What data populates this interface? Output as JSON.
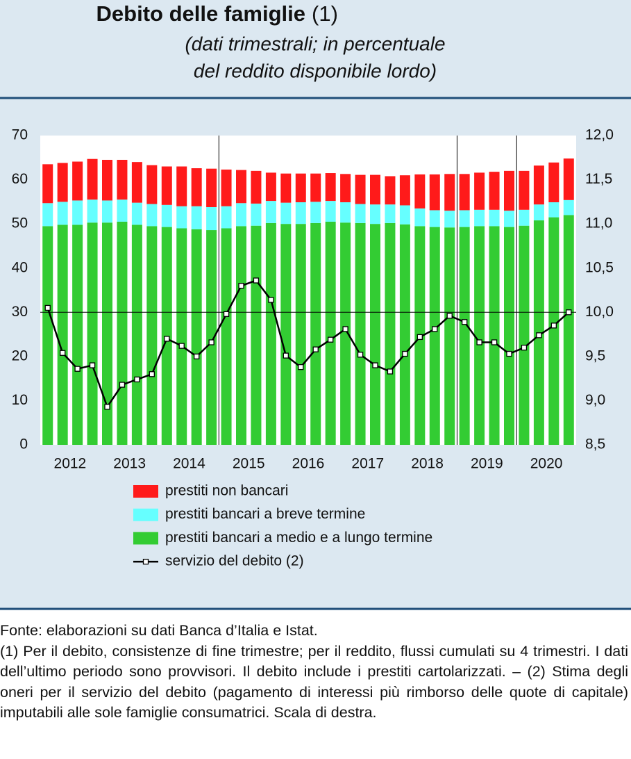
{
  "chart_data": {
    "type": "bar",
    "title": "Debito delle famiglie",
    "title_note": "(1)",
    "subtitle": [
      "(dati trimestrali; in percentuale",
      "del reddito disponibile lordo)"
    ],
    "stacked": true,
    "categories": [
      "2012",
      null,
      null,
      null,
      "2013",
      null,
      null,
      null,
      "2014",
      null,
      null,
      null,
      "2015",
      null,
      null,
      null,
      "2016",
      null,
      null,
      null,
      "2017",
      null,
      null,
      null,
      "2018",
      null,
      null,
      null,
      "2019",
      null,
      null,
      null,
      "2020",
      null,
      null,
      null
    ],
    "series": [
      {
        "name": "prestiti non bancari",
        "color": "#ff1a1a",
        "values": [
          8.8,
          8.8,
          8.8,
          9.2,
          9.2,
          9.0,
          9.2,
          8.8,
          8.7,
          9.0,
          8.6,
          8.7,
          8.3,
          7.5,
          7.4,
          6.4,
          6.6,
          6.5,
          6.4,
          6.3,
          6.4,
          6.6,
          6.7,
          6.4,
          6.8,
          7.7,
          8.1,
          8.3,
          8.2,
          8.4,
          8.6,
          9.0,
          8.8,
          8.8,
          9.0,
          9.4
        ]
      },
      {
        "name": "prestiti bancari a breve termine",
        "color": "#66ffff",
        "values": [
          5.2,
          5.2,
          5.5,
          5.2,
          5.0,
          5.0,
          5.0,
          5.0,
          5.0,
          5.0,
          5.2,
          5.2,
          5.0,
          5.2,
          5.0,
          5.0,
          4.8,
          4.9,
          4.8,
          4.7,
          4.6,
          4.3,
          4.4,
          4.2,
          4.3,
          4.0,
          3.8,
          3.8,
          3.8,
          3.7,
          3.7,
          3.7,
          3.6,
          3.6,
          3.4,
          3.4
        ]
      },
      {
        "name": "prestiti bancari a medio e a lungo termine",
        "color": "#33cc33",
        "values": [
          49.5,
          49.8,
          49.8,
          50.3,
          50.3,
          50.5,
          49.8,
          49.5,
          49.3,
          49.0,
          48.8,
          48.6,
          49.0,
          49.5,
          49.6,
          50.2,
          50.0,
          50.0,
          50.2,
          50.5,
          50.3,
          50.2,
          50.0,
          50.2,
          49.9,
          49.5,
          49.3,
          49.2,
          49.3,
          49.5,
          49.5,
          49.3,
          49.6,
          50.8,
          51.5,
          52.0
        ]
      },
      {
        "name": "servizio del debito (2)",
        "type": "line",
        "axis": "y2",
        "color": "#000000",
        "values": [
          10.05,
          9.54,
          9.36,
          9.4,
          8.93,
          9.18,
          9.24,
          9.3,
          9.7,
          9.62,
          9.5,
          9.66,
          9.98,
          10.3,
          10.36,
          10.14,
          9.51,
          9.38,
          9.58,
          9.69,
          9.81,
          9.52,
          9.4,
          9.33,
          9.53,
          9.72,
          9.81,
          9.96,
          9.89,
          9.66,
          9.66,
          9.53,
          9.6,
          9.74,
          9.85,
          10.0
        ]
      }
    ],
    "ylim": [
      0,
      70
    ],
    "yticks": [
      0,
      10,
      20,
      30,
      40,
      50,
      60,
      70
    ],
    "y2lim": [
      8.5,
      12.0
    ],
    "y2ticks": [
      {
        "value": 8.5,
        "label": "8,5"
      },
      {
        "value": 9.0,
        "label": "9,0"
      },
      {
        "value": 9.5,
        "label": "9,5"
      },
      {
        "value": 10.0,
        "label": "10,0"
      },
      {
        "value": 10.5,
        "label": "10,5"
      },
      {
        "value": 11.0,
        "label": "11,0"
      },
      {
        "value": 11.5,
        "label": "11,5"
      },
      {
        "value": 12.0,
        "label": "12,0"
      }
    ],
    "hline": 30,
    "source": "Fonte: elaborazioni su dati Banca d’Italia e Istat.",
    "notes": "(1) Per il debito, consistenze di fine trimestre; per il reddito, flussi cumulati su 4 trimestri. I dati dell’ultimo periodo sono provvisori. Il debito include i prestiti cartolarizzati. – (2) Stima degli oneri per il servizio del debito (pagamento di interessi più rimborso delle quote di capitale) imputabili alle sole famiglie consumatrici. Scala di destra."
  }
}
